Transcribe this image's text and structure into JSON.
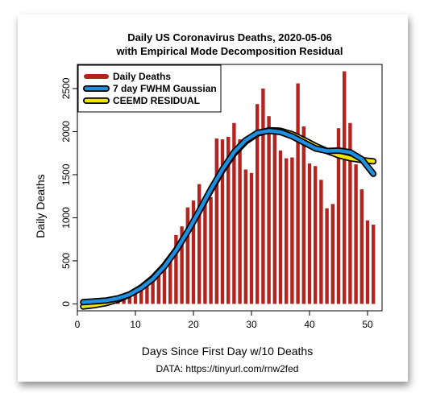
{
  "chart_data": {
    "type": "bar",
    "title": "Daily US Coronavirus Deaths, 2020-05-06",
    "subtitle": "with Empirical Mode Decomposition Residual",
    "xlabel": "Days Since First Day w/10 Deaths",
    "ylabel": "Daily Deaths",
    "caption": "DATA: https://tinyurl.com/rnw2fed",
    "xlim": [
      0,
      52.5
    ],
    "ylim": [
      -80,
      2780
    ],
    "xticks": [
      0,
      10,
      20,
      30,
      40,
      50
    ],
    "yticks": [
      0,
      500,
      1000,
      1500,
      2000,
      2500
    ],
    "grid": false,
    "legend_position": "top-left",
    "colors": {
      "bars": "#b5231f",
      "gaussian": "#1f8fe0",
      "residual": "#f2e600",
      "outline": "#000000"
    },
    "series": [
      {
        "name": "Daily Deaths",
        "type": "bar",
        "x": [
          1,
          2,
          3,
          4,
          5,
          6,
          7,
          8,
          9,
          10,
          11,
          12,
          13,
          14,
          15,
          16,
          17,
          18,
          19,
          20,
          21,
          22,
          23,
          24,
          25,
          26,
          27,
          28,
          29,
          30,
          31,
          32,
          33,
          34,
          35,
          36,
          37,
          38,
          39,
          40,
          41,
          42,
          43,
          44,
          45,
          46,
          47,
          48,
          49,
          50,
          51
        ],
        "values": [
          10,
          10,
          15,
          20,
          25,
          35,
          50,
          80,
          120,
          160,
          200,
          260,
          330,
          380,
          470,
          550,
          800,
          900,
          1120,
          1200,
          1390,
          1240,
          1240,
          1920,
          1910,
          1940,
          2100,
          1910,
          1560,
          1520,
          2320,
          2500,
          2180,
          1990,
          1780,
          1690,
          1700,
          2560,
          2060,
          1630,
          1600,
          1440,
          1110,
          1160,
          2040,
          2700,
          2100,
          1620,
          1330,
          970,
          920
        ]
      },
      {
        "name": "7 day FWHM Gaussian",
        "type": "line",
        "x": [
          1,
          3,
          5,
          7,
          9,
          11,
          13,
          15,
          17,
          19,
          21,
          23,
          25,
          27,
          29,
          31,
          33,
          35,
          37,
          39,
          41,
          43,
          45,
          47,
          49,
          51
        ],
        "values": [
          20,
          30,
          40,
          65,
          110,
          185,
          290,
          435,
          620,
          840,
          1080,
          1330,
          1560,
          1760,
          1900,
          1985,
          2010,
          1995,
          1945,
          1875,
          1805,
          1775,
          1780,
          1760,
          1680,
          1510
        ]
      },
      {
        "name": "CEEMD RESIDUAL",
        "type": "line",
        "x": [
          1,
          3,
          5,
          7,
          9,
          11,
          13,
          15,
          17,
          19,
          21,
          23,
          25,
          27,
          29,
          31,
          33,
          35,
          37,
          39,
          41,
          43,
          45,
          47,
          49,
          51
        ],
        "values": [
          -30,
          -15,
          10,
          50,
          110,
          190,
          300,
          445,
          625,
          840,
          1075,
          1320,
          1550,
          1745,
          1885,
          1975,
          2015,
          2010,
          1970,
          1905,
          1835,
          1775,
          1725,
          1690,
          1670,
          1655
        ]
      }
    ]
  }
}
